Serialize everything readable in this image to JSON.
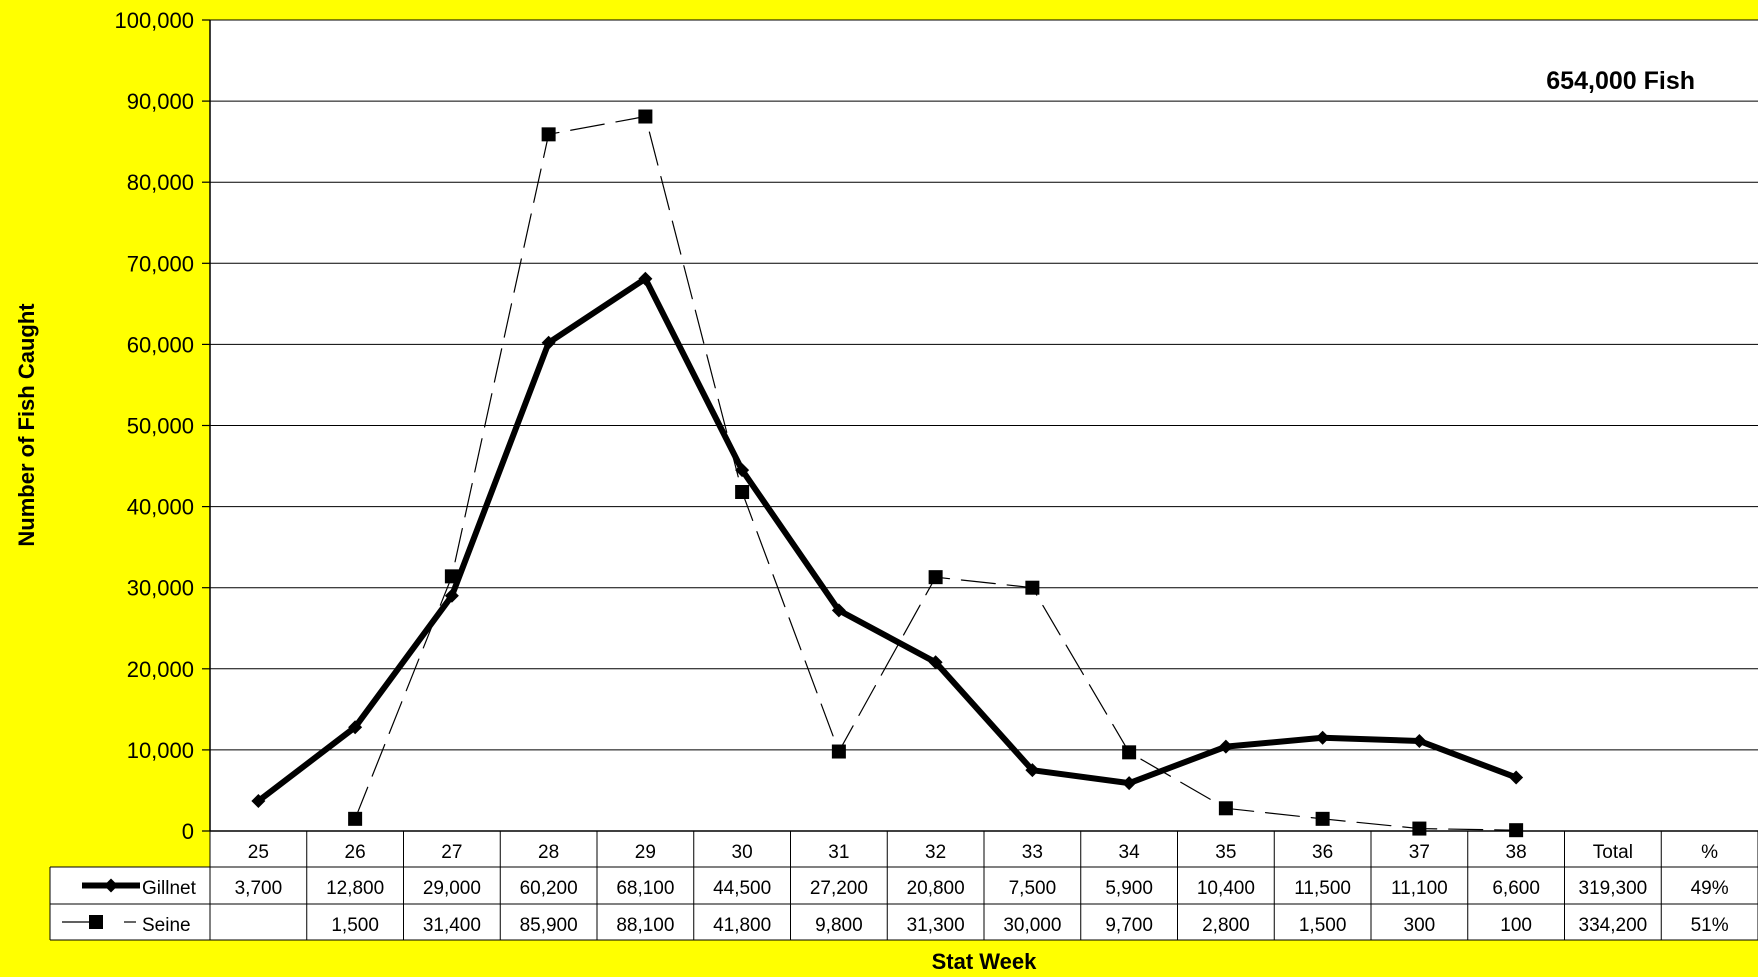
{
  "chart_data": {
    "type": "line",
    "title": "",
    "annotation": "654,000 Fish",
    "xlabel": "Stat Week",
    "ylabel": "Number of Fish Caught",
    "ylim": [
      0,
      100000
    ],
    "y_ticks": [
      0,
      10000,
      20000,
      30000,
      40000,
      50000,
      60000,
      70000,
      80000,
      90000,
      100000
    ],
    "y_tick_labels": [
      "0",
      "10,000",
      "20,000",
      "30,000",
      "40,000",
      "50,000",
      "60,000",
      "70,000",
      "80,000",
      "90,000",
      "100,000"
    ],
    "grid": true,
    "categories": [
      "25",
      "26",
      "27",
      "28",
      "29",
      "30",
      "31",
      "32",
      "33",
      "34",
      "35",
      "36",
      "37",
      "38"
    ],
    "table_extra_headers": [
      "Total",
      "%"
    ],
    "series": [
      {
        "name": "Gillnet",
        "marker": "diamond",
        "line": "thick-solid",
        "values": [
          3700,
          12800,
          29000,
          60200,
          68100,
          44500,
          27200,
          20800,
          7500,
          5900,
          10400,
          11500,
          11100,
          6600
        ],
        "value_labels": [
          "3,700",
          "12,800",
          "29,000",
          "60,200",
          "68,100",
          "44,500",
          "27,200",
          "20,800",
          "7,500",
          "5,900",
          "10,400",
          "11,500",
          "11,100",
          "6,600"
        ],
        "total": "319,300",
        "percent": "49%"
      },
      {
        "name": "Seine",
        "marker": "square",
        "line": "thin-dashed",
        "values": [
          null,
          1500,
          31400,
          85900,
          88100,
          41800,
          9800,
          31300,
          30000,
          9700,
          2800,
          1500,
          300,
          100
        ],
        "value_labels": [
          "",
          "1,500",
          "31,400",
          "85,900",
          "88,100",
          "41,800",
          "9,800",
          "31,300",
          "30,000",
          "9,700",
          "2,800",
          "1,500",
          "300",
          "100"
        ],
        "total": "334,200",
        "percent": "51%"
      }
    ]
  }
}
